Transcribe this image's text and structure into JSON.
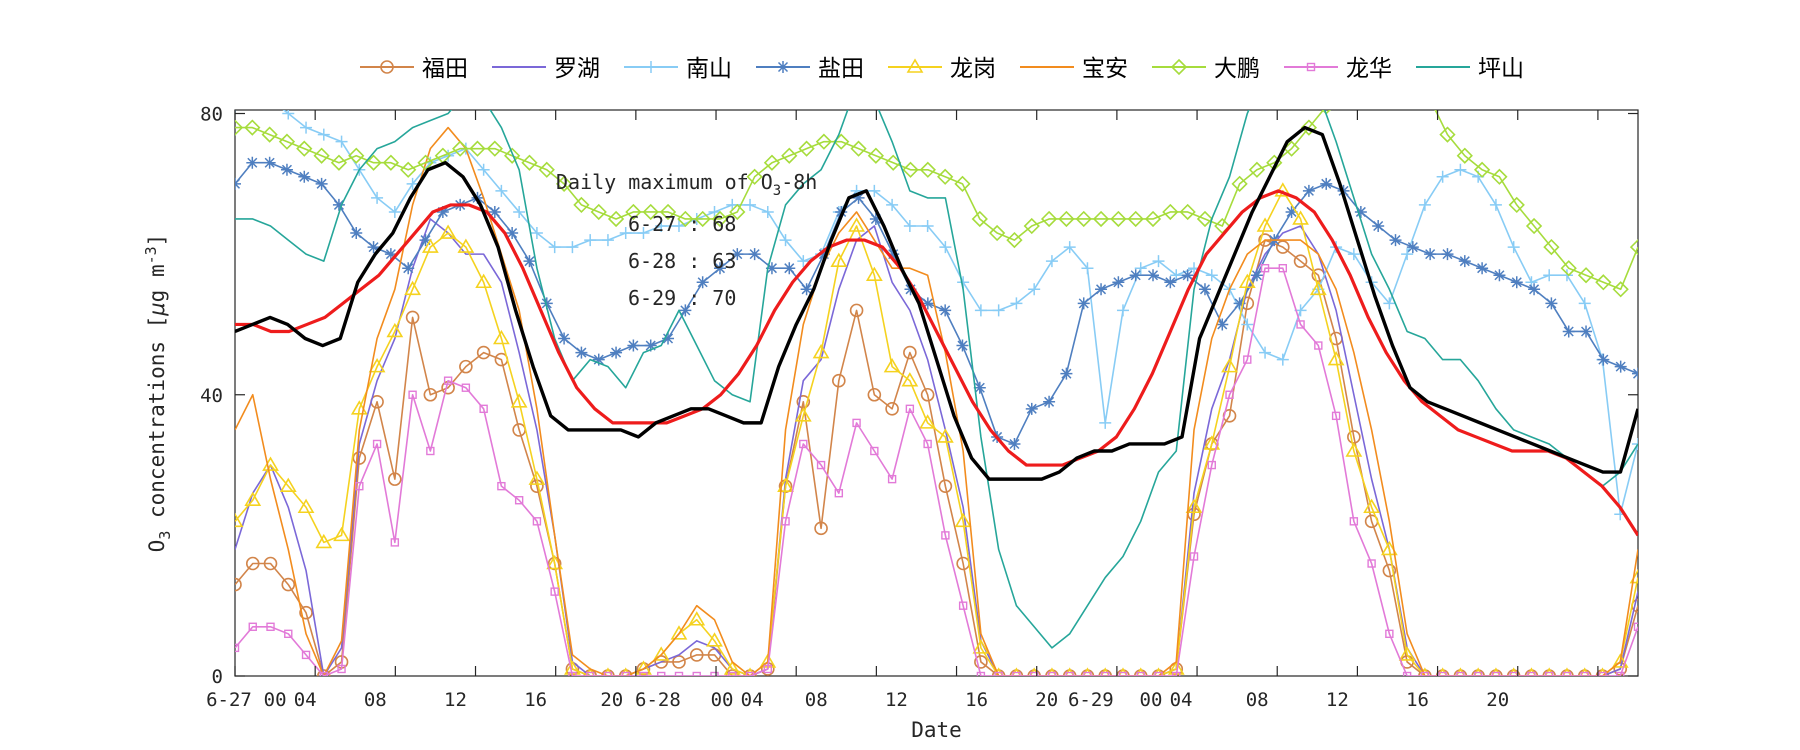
{
  "chart_data": {
    "type": "line",
    "xlabel": "Date",
    "ylabel_prefix": "O",
    "ylabel_sub": "3",
    "ylabel_mid": " concentrations [",
    "ylabel_mu": "μ",
    "ylabel_unit": "g m",
    "ylabel_sup": "-3",
    "ylabel_end": "]",
    "ylim": [
      0,
      80.5
    ],
    "xlim": [
      0,
      70
    ],
    "y_ticks": [
      0,
      40,
      80
    ],
    "y_tick_labels": [
      "0",
      "40",
      "80"
    ],
    "x_ticks": [
      0,
      4,
      8,
      12,
      16,
      20,
      24,
      28,
      32,
      36,
      40,
      44,
      48,
      52,
      56,
      60,
      64,
      68
    ],
    "x_tick_labels": [
      "6-27",
      "00",
      "04",
      "08",
      "12",
      "16",
      "20",
      "6-28",
      "00",
      "04",
      "08",
      "12",
      "16",
      "20",
      "6-29",
      "00",
      "04",
      "08",
      "12",
      "16",
      "20"
    ],
    "x_tick_label_positions": [
      -0.3,
      2.0,
      3.5,
      7,
      11,
      15,
      18.8,
      21.1,
      24.3,
      25.8,
      29,
      33,
      37,
      40.5,
      42.7,
      45.7,
      47.2,
      51,
      55,
      59,
      63
    ],
    "grid": false,
    "legend_position": "top-outside",
    "annotation": {
      "title_text": "Daily maximum of O",
      "title_sub": "3",
      "title_suffix": "-8h",
      "lines": [
        "6-27 : 68",
        "6-28 : 63",
        "6-29 : 70"
      ]
    },
    "series": [
      {
        "name": "福田",
        "color": "#d2854a",
        "marker": "circle",
        "values": [
          13,
          16,
          16,
          13,
          9,
          0,
          2,
          31,
          39,
          28,
          51,
          40,
          41,
          44,
          46,
          45,
          35,
          27,
          16,
          1,
          0,
          0,
          0,
          1,
          2,
          2,
          3,
          3,
          0,
          0,
          1,
          27,
          39,
          21,
          42,
          52,
          40,
          38,
          46,
          40,
          27,
          16,
          2,
          0,
          0,
          0,
          0,
          0,
          0,
          0,
          0,
          0,
          0,
          1,
          23,
          33,
          37,
          53,
          62,
          61,
          59,
          57,
          48,
          34,
          22,
          15,
          2,
          0,
          0,
          0,
          0,
          0,
          0,
          0,
          0,
          0,
          0,
          0,
          1,
          10
        ]
      },
      {
        "name": "罗湖",
        "color": "#7b68d8",
        "marker": "none",
        "values": [
          18,
          26,
          30,
          24,
          15,
          0,
          4,
          33,
          42,
          48,
          58,
          65,
          63,
          60,
          60,
          56,
          46,
          35,
          20,
          2,
          0,
          0,
          0,
          1,
          2,
          3,
          5,
          4,
          1,
          0,
          1,
          28,
          42,
          45,
          55,
          62,
          64,
          56,
          52,
          45,
          35,
          24,
          5,
          0,
          0,
          0,
          0,
          0,
          0,
          0,
          0,
          0,
          0,
          1,
          26,
          38,
          45,
          55,
          60,
          63,
          64,
          60,
          52,
          40,
          28,
          18,
          4,
          0,
          0,
          0,
          0,
          0,
          0,
          0,
          0,
          0,
          0,
          0,
          1,
          12
        ]
      },
      {
        "name": "南山",
        "color": "#88ccf5",
        "marker": "plus",
        "values": [
          81,
          82,
          82,
          80,
          78,
          77,
          76,
          72,
          68,
          66,
          70,
          73,
          74,
          75,
          72,
          69,
          66,
          63,
          61,
          61,
          62,
          62,
          63,
          63,
          64,
          64,
          65,
          66,
          67,
          67,
          66,
          62,
          59,
          60,
          66,
          69,
          69,
          67,
          64,
          64,
          61,
          56,
          52,
          52,
          53,
          55,
          59,
          61,
          58,
          36,
          52,
          58,
          59,
          57,
          58,
          57,
          55,
          50,
          46,
          45,
          52,
          55,
          61,
          60,
          56,
          53,
          60,
          67,
          71,
          72,
          71,
          67,
          61,
          56,
          57,
          57,
          53,
          45,
          23,
          33
        ]
      },
      {
        "name": "盐田",
        "color": "#4f7fc0",
        "marker": "star",
        "values": [
          70,
          73,
          73,
          72,
          71,
          70,
          67,
          63,
          61,
          60,
          58,
          62,
          66,
          67,
          68,
          66,
          63,
          59,
          53,
          48,
          46,
          45,
          46,
          47,
          47,
          48,
          52,
          56,
          58,
          60,
          60,
          58,
          58,
          55,
          60,
          66,
          68,
          65,
          60,
          55,
          53,
          52,
          47,
          41,
          34,
          33,
          38,
          39,
          43,
          53,
          55,
          56,
          57,
          57,
          56,
          57,
          55,
          50,
          53,
          57,
          62,
          66,
          69,
          70,
          69,
          66,
          64,
          62,
          61,
          60,
          60,
          59,
          58,
          57,
          56,
          55,
          53,
          49,
          49,
          45,
          44,
          43
        ]
      },
      {
        "name": "龙岗",
        "color": "#f5d21f",
        "marker": "triangle",
        "values": [
          22,
          25,
          30,
          27,
          24,
          19,
          20,
          38,
          44,
          49,
          55,
          61,
          63,
          61,
          56,
          48,
          39,
          28,
          16,
          1,
          0,
          0,
          0,
          1,
          3,
          6,
          8,
          5,
          1,
          0,
          2,
          27,
          37,
          46,
          59,
          64,
          57,
          44,
          42,
          36,
          34,
          22,
          4,
          0,
          0,
          0,
          0,
          0,
          0,
          0,
          0,
          0,
          0,
          1,
          24,
          33,
          44,
          56,
          64,
          69,
          65,
          55,
          45,
          32,
          24,
          18,
          3,
          0,
          0,
          0,
          0,
          0,
          0,
          0,
          0,
          0,
          0,
          0,
          2,
          14
        ]
      },
      {
        "name": "宝安",
        "color": "#f28c1e",
        "marker": "none",
        "values": [
          35,
          40,
          28,
          18,
          6,
          0,
          5,
          35,
          48,
          55,
          67,
          75,
          78,
          75,
          68,
          60,
          52,
          38,
          20,
          3,
          1,
          0,
          0,
          1,
          3,
          6,
          10,
          8,
          2,
          0,
          2,
          35,
          50,
          58,
          63,
          66,
          62,
          58,
          58,
          57,
          46,
          32,
          6,
          0,
          0,
          0,
          0,
          0,
          0,
          0,
          0,
          0,
          0,
          2,
          35,
          48,
          55,
          60,
          62,
          62,
          62,
          60,
          55,
          46,
          35,
          22,
          6,
          0,
          0,
          0,
          0,
          0,
          0,
          0,
          0,
          0,
          0,
          0,
          2,
          18
        ]
      },
      {
        "name": "大鹏",
        "color": "#a6dc3c",
        "marker": "diamond",
        "values": [
          78,
          78,
          77,
          76,
          75,
          74,
          73,
          74,
          73,
          73,
          72,
          73,
          74,
          75,
          75,
          75,
          74,
          73,
          72,
          70,
          67,
          66,
          65,
          66,
          66,
          66,
          65,
          65,
          65,
          66,
          71,
          73,
          74,
          75,
          76,
          76,
          75,
          74,
          73,
          72,
          72,
          71,
          70,
          65,
          63,
          62,
          64,
          65,
          65,
          65,
          65,
          65,
          65,
          65,
          66,
          66,
          65,
          64,
          70,
          72,
          73,
          75,
          78,
          81,
          83,
          84,
          86,
          85,
          84,
          82,
          77,
          74,
          72,
          71,
          67,
          64,
          61,
          58,
          57,
          56,
          55,
          61
        ]
      },
      {
        "name": "龙华",
        "color": "#e27ad8",
        "marker": "square",
        "values": [
          4,
          7,
          7,
          6,
          3,
          0,
          1,
          27,
          33,
          19,
          40,
          32,
          42,
          41,
          38,
          27,
          25,
          22,
          12,
          0,
          0,
          0,
          0,
          0,
          0,
          0,
          0,
          0,
          0,
          0,
          1,
          22,
          33,
          30,
          26,
          36,
          32,
          28,
          38,
          33,
          20,
          10,
          0,
          0,
          0,
          0,
          0,
          0,
          0,
          0,
          0,
          0,
          0,
          0,
          17,
          30,
          40,
          45,
          58,
          58,
          50,
          47,
          37,
          22,
          16,
          6,
          0,
          0,
          0,
          0,
          0,
          0,
          0,
          0,
          0,
          0,
          0,
          0,
          0,
          7
        ]
      },
      {
        "name": "坪山",
        "color": "#26a69a",
        "marker": "none",
        "values": [
          65,
          65,
          64,
          62,
          60,
          59,
          67,
          72,
          75,
          76,
          78,
          79,
          80,
          83,
          82,
          78,
          72,
          58,
          48,
          42,
          45,
          44,
          41,
          46,
          47,
          52,
          47,
          42,
          40,
          39,
          58,
          67,
          70,
          72,
          77,
          84,
          82,
          76,
          69,
          68,
          68,
          55,
          34,
          18,
          10,
          7,
          4,
          6,
          10,
          14,
          17,
          22,
          29,
          32,
          55,
          65,
          71,
          80,
          86,
          90,
          88,
          83,
          76,
          68,
          60,
          55,
          49,
          48,
          45,
          45,
          42,
          38,
          35,
          34,
          33,
          31,
          29,
          27,
          29,
          33
        ]
      }
    ],
    "mean_line": {
      "color": "#000000",
      "values": [
        49,
        50,
        51,
        50,
        48,
        47,
        48,
        56,
        60,
        63,
        68,
        72,
        73,
        71,
        67,
        61,
        52,
        44,
        37,
        35,
        35,
        35,
        35,
        34,
        36,
        37,
        38,
        38,
        37,
        36,
        36,
        44,
        50,
        55,
        62,
        68,
        69,
        64,
        58,
        53,
        45,
        37,
        31,
        28,
        28,
        28,
        28,
        29,
        31,
        32,
        32,
        33,
        33,
        33,
        34,
        48,
        54,
        60,
        66,
        71,
        76,
        78,
        77,
        70,
        62,
        54,
        47,
        41,
        39,
        38,
        37,
        36,
        35,
        34,
        33,
        32,
        31,
        30,
        29,
        29,
        38
      ]
    },
    "smooth_line": {
      "color": "#ee1c1c",
      "values": [
        50,
        50,
        49,
        49,
        50,
        51,
        53,
        55,
        57,
        60,
        63,
        66,
        67,
        67,
        66,
        63,
        58,
        52,
        46,
        41,
        38,
        36,
        36,
        36,
        36,
        37,
        38,
        40,
        43,
        47,
        52,
        56,
        59,
        61,
        62,
        62,
        61,
        58,
        54,
        49,
        44,
        39,
        35,
        32,
        30,
        30,
        30,
        31,
        32,
        34,
        38,
        43,
        49,
        55,
        60,
        63,
        66,
        68,
        69,
        68,
        66,
        62,
        57,
        51,
        46,
        42,
        39,
        37,
        35,
        34,
        33,
        32,
        32,
        32,
        31,
        29,
        27,
        24,
        20
      ]
    }
  }
}
